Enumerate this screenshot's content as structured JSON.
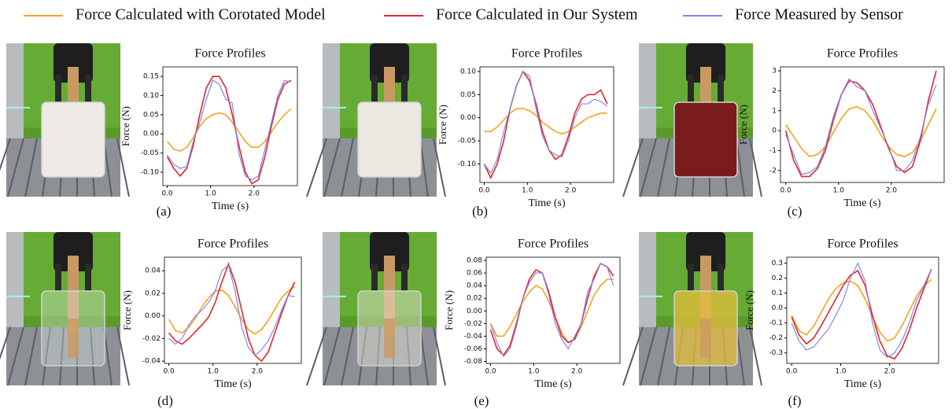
{
  "legend": [
    {
      "name": "Force Calculated with Corotated Model",
      "color": "#f5a31f"
    },
    {
      "name": "Force Calculated in Our System",
      "color": "#e3262b"
    },
    {
      "name": "Force Measured by Sensor",
      "color": "#8585ee"
    }
  ],
  "chart_data": [
    {
      "type": "line",
      "title": "Force Profiles",
      "xlabel": "Time (s)",
      "ylabel": "Force (N)",
      "caption": "(a)",
      "x": [
        0,
        0.15,
        0.3,
        0.45,
        0.6,
        0.75,
        0.9,
        1.05,
        1.2,
        1.35,
        1.5,
        1.65,
        1.8,
        1.95,
        2.1,
        2.25,
        2.4,
        2.55,
        2.7,
        2.85
      ],
      "xlim": [
        -0.1,
        3.0
      ],
      "xticks": [
        {
          "value": 0,
          "label": "0.0"
        },
        {
          "value": 1,
          "label": "1.0"
        },
        {
          "value": 2,
          "label": "2.0"
        }
      ],
      "ylim": [
        -0.135,
        0.175
      ],
      "yticks": [
        {
          "value": -0.1,
          "label": "-0.10"
        },
        -0.05,
        {
          "value": 0,
          "label": "0.00"
        },
        0.05,
        {
          "value": 0.1,
          "label": "0.10"
        },
        0.15
      ],
      "series": [
        {
          "values": [
            -0.02,
            -0.04,
            -0.045,
            -0.035,
            -0.01,
            0.02,
            0.04,
            0.05,
            0.055,
            0.05,
            0.03,
            0.005,
            -0.02,
            -0.035,
            -0.035,
            -0.02,
            0.005,
            0.03,
            0.05,
            0.065
          ]
        },
        {
          "values": [
            -0.06,
            -0.09,
            -0.11,
            -0.09,
            -0.03,
            0.05,
            0.12,
            0.15,
            0.15,
            0.12,
            0.05,
            -0.03,
            -0.1,
            -0.13,
            -0.12,
            -0.06,
            0.02,
            0.09,
            0.13,
            0.14
          ]
        },
        {
          "values": [
            -0.055,
            -0.08,
            -0.09,
            -0.085,
            -0.02,
            0.03,
            0.09,
            0.14,
            0.13,
            0.09,
            0.08,
            -0.05,
            -0.11,
            -0.12,
            -0.11,
            -0.04,
            0.03,
            0.1,
            0.14,
            0.135
          ]
        }
      ]
    },
    {
      "type": "line",
      "title": "Force Profiles",
      "xlabel": "Time (s)",
      "ylabel": "Force (N)",
      "caption": "(b)",
      "x": [
        0,
        0.15,
        0.3,
        0.45,
        0.6,
        0.75,
        0.9,
        1.05,
        1.2,
        1.35,
        1.5,
        1.65,
        1.8,
        1.95,
        2.1,
        2.25,
        2.4,
        2.55,
        2.7,
        2.85
      ],
      "xlim": [
        -0.1,
        3.0
      ],
      "xticks": [
        {
          "value": 0,
          "label": "0.0"
        },
        {
          "value": 1,
          "label": "1.0"
        },
        {
          "value": 2,
          "label": "2.0"
        }
      ],
      "ylim": [
        -0.14,
        0.11
      ],
      "yticks": [
        {
          "value": -0.1,
          "label": "-0.10"
        },
        -0.05,
        {
          "value": 0,
          "label": "0.00"
        },
        0.05,
        {
          "value": 0.1,
          "label": "0.10"
        }
      ],
      "series": [
        {
          "values": [
            -0.03,
            -0.03,
            -0.02,
            -0.005,
            0.01,
            0.02,
            0.02,
            0.015,
            0.005,
            -0.01,
            -0.02,
            -0.03,
            -0.035,
            -0.03,
            -0.02,
            -0.01,
            0,
            0.005,
            0.01,
            0.01
          ]
        },
        {
          "values": [
            -0.1,
            -0.13,
            -0.1,
            -0.05,
            0.02,
            0.07,
            0.1,
            0.08,
            0.03,
            -0.03,
            -0.07,
            -0.09,
            -0.08,
            -0.04,
            0.01,
            0.04,
            0.05,
            0.05,
            0.06,
            0.03
          ]
        },
        {
          "values": [
            -0.1,
            -0.12,
            -0.09,
            -0.03,
            0.02,
            0.07,
            0.1,
            0.09,
            0.02,
            -0.04,
            -0.07,
            -0.08,
            -0.085,
            -0.05,
            0,
            0.03,
            0.03,
            0.04,
            0.035,
            0.025
          ]
        }
      ]
    },
    {
      "type": "line",
      "title": "Force Profiles",
      "xlabel": "Time (s)",
      "ylabel": "Force (N)",
      "caption": "(c)",
      "x": [
        0,
        0.15,
        0.3,
        0.45,
        0.6,
        0.75,
        0.9,
        1.05,
        1.2,
        1.35,
        1.5,
        1.65,
        1.8,
        1.95,
        2.1,
        2.25,
        2.4,
        2.55,
        2.7,
        2.85
      ],
      "xlim": [
        -0.1,
        3.0
      ],
      "xticks": [
        {
          "value": 0,
          "label": "0.0"
        },
        {
          "value": 1,
          "label": "1.0"
        },
        {
          "value": 2,
          "label": "2.0"
        }
      ],
      "ylim": [
        -2.6,
        3.2
      ],
      "yticks": [
        -2,
        -1,
        0,
        1,
        2,
        3
      ],
      "series": [
        {
          "values": [
            0.3,
            -0.3,
            -0.9,
            -1.3,
            -1.2,
            -0.8,
            -0.1,
            0.6,
            1.1,
            1.2,
            1.0,
            0.5,
            -0.2,
            -0.8,
            -1.2,
            -1.3,
            -1.1,
            -0.5,
            0.3,
            1.1
          ]
        },
        {
          "values": [
            0,
            -1.5,
            -2.3,
            -2.3,
            -1.9,
            -1.0,
            0.5,
            1.8,
            2.5,
            2.4,
            2.0,
            1.3,
            0.2,
            -0.9,
            -1.8,
            -2.1,
            -1.8,
            -0.5,
            1.5,
            3.0
          ]
        },
        {
          "values": [
            -0.2,
            -1.2,
            -2.2,
            -2.1,
            -1.8,
            -0.8,
            0.7,
            1.8,
            2.6,
            2.2,
            2.0,
            1.0,
            0.1,
            -0.8,
            -2.0,
            -2.0,
            -1.5,
            -0.3,
            1.3,
            2.3
          ]
        }
      ]
    },
    {
      "type": "line",
      "title": "Force Profiles",
      "xlabel": "Time (s)",
      "ylabel": "Force (N)",
      "caption": "(d)",
      "x": [
        0,
        0.15,
        0.3,
        0.45,
        0.6,
        0.75,
        0.9,
        1.05,
        1.2,
        1.35,
        1.5,
        1.65,
        1.8,
        1.95,
        2.1,
        2.25,
        2.4,
        2.55,
        2.7,
        2.85
      ],
      "xlim": [
        -0.1,
        3.0
      ],
      "xticks": [
        {
          "value": 0,
          "label": "0.0"
        },
        {
          "value": 1,
          "label": "1.0"
        },
        {
          "value": 2,
          "label": "2.0"
        }
      ],
      "ylim": [
        -0.042,
        0.052
      ],
      "yticks": [
        -0.04,
        -0.02,
        {
          "value": 0,
          "label": "0.00"
        },
        0.02,
        0.04
      ],
      "series": [
        {
          "values": [
            -0.003,
            -0.013,
            -0.015,
            -0.01,
            -0.002,
            0.008,
            0.016,
            0.022,
            0.023,
            0.018,
            0.008,
            -0.003,
            -0.012,
            -0.016,
            -0.012,
            -0.004,
            0.006,
            0.016,
            0.022,
            0.026
          ]
        },
        {
          "values": [
            -0.015,
            -0.022,
            -0.025,
            -0.02,
            -0.014,
            -0.008,
            -0.001,
            0.012,
            0.03,
            0.046,
            0.03,
            0.005,
            -0.02,
            -0.035,
            -0.04,
            -0.032,
            -0.015,
            0.002,
            0.018,
            0.03
          ]
        },
        {
          "values": [
            -0.02,
            -0.025,
            -0.02,
            -0.008,
            0,
            0.005,
            0.012,
            0.022,
            0.04,
            0.045,
            0.022,
            -0.01,
            -0.028,
            -0.035,
            -0.03,
            -0.022,
            -0.01,
            0.005,
            0.018,
            0.017
          ]
        }
      ]
    },
    {
      "type": "line",
      "title": "Force Profiles",
      "xlabel": "Time (s)",
      "ylabel": "Force (N)",
      "caption": "(e)",
      "x": [
        0,
        0.15,
        0.3,
        0.45,
        0.6,
        0.75,
        0.9,
        1.05,
        1.2,
        1.35,
        1.5,
        1.65,
        1.8,
        1.95,
        2.1,
        2.25,
        2.4,
        2.55,
        2.7,
        2.85
      ],
      "xlim": [
        -0.1,
        3.0
      ],
      "xticks": [
        {
          "value": 0,
          "label": "0.0"
        },
        {
          "value": 1,
          "label": "1.0"
        },
        {
          "value": 2,
          "label": "2.0"
        }
      ],
      "ylim": [
        -0.083,
        0.085
      ],
      "yticks": [
        -0.08,
        -0.06,
        -0.04,
        -0.02,
        {
          "value": 0,
          "label": "0.00"
        },
        0.02,
        0.04,
        0.06,
        0.08
      ],
      "series": [
        {
          "values": [
            -0.02,
            -0.04,
            -0.04,
            -0.025,
            -0.005,
            0.015,
            0.03,
            0.04,
            0.035,
            0.015,
            -0.01,
            -0.035,
            -0.05,
            -0.045,
            -0.025,
            0,
            0.025,
            0.04,
            0.05,
            0.05
          ]
        },
        {
          "values": [
            -0.03,
            -0.06,
            -0.07,
            -0.055,
            -0.02,
            0.02,
            0.05,
            0.065,
            0.06,
            0.03,
            -0.01,
            -0.04,
            -0.05,
            -0.045,
            -0.02,
            0.02,
            0.055,
            0.075,
            0.07,
            0.055
          ]
        },
        {
          "values": [
            -0.02,
            -0.05,
            -0.072,
            -0.06,
            -0.025,
            0.02,
            0.045,
            0.06,
            0.06,
            0.025,
            -0.02,
            -0.045,
            -0.06,
            -0.04,
            -0.02,
            0.03,
            0.05,
            0.075,
            0.07,
            0.04
          ]
        }
      ]
    },
    {
      "type": "line",
      "title": "Force Profiles",
      "xlabel": "Time (s)",
      "ylabel": "Force (N)",
      "caption": "(f)",
      "x": [
        0,
        0.15,
        0.3,
        0.45,
        0.6,
        0.75,
        0.9,
        1.05,
        1.2,
        1.35,
        1.5,
        1.65,
        1.8,
        1.95,
        2.1,
        2.25,
        2.4,
        2.55,
        2.7,
        2.85
      ],
      "xlim": [
        -0.1,
        3.0
      ],
      "xticks": [
        {
          "value": 0,
          "label": "0.0"
        },
        {
          "value": 1,
          "label": "1.0"
        },
        {
          "value": 2,
          "label": "2.0"
        }
      ],
      "ylim": [
        -0.37,
        0.34
      ],
      "yticks": [
        -0.3,
        -0.2,
        -0.1,
        {
          "value": 0,
          "label": "0.0"
        },
        0.1,
        0.2,
        0.3
      ],
      "series": [
        {
          "values": [
            -0.05,
            -0.15,
            -0.18,
            -0.12,
            -0.03,
            0.06,
            0.13,
            0.17,
            0.18,
            0.15,
            0.06,
            -0.06,
            -0.16,
            -0.22,
            -0.2,
            -0.12,
            -0.02,
            0.08,
            0.15,
            0.19
          ]
        },
        {
          "values": [
            -0.06,
            -0.18,
            -0.24,
            -0.2,
            -0.12,
            -0.03,
            0.06,
            0.15,
            0.22,
            0.25,
            0.15,
            -0.05,
            -0.22,
            -0.32,
            -0.34,
            -0.27,
            -0.15,
            0,
            0.13,
            0.26
          ]
        },
        {
          "values": [
            -0.1,
            -0.22,
            -0.28,
            -0.26,
            -0.2,
            -0.14,
            -0.05,
            0.05,
            0.2,
            0.3,
            0.18,
            -0.1,
            -0.28,
            -0.33,
            -0.3,
            -0.22,
            -0.1,
            0.05,
            0.15,
            0.26
          ]
        }
      ]
    }
  ]
}
